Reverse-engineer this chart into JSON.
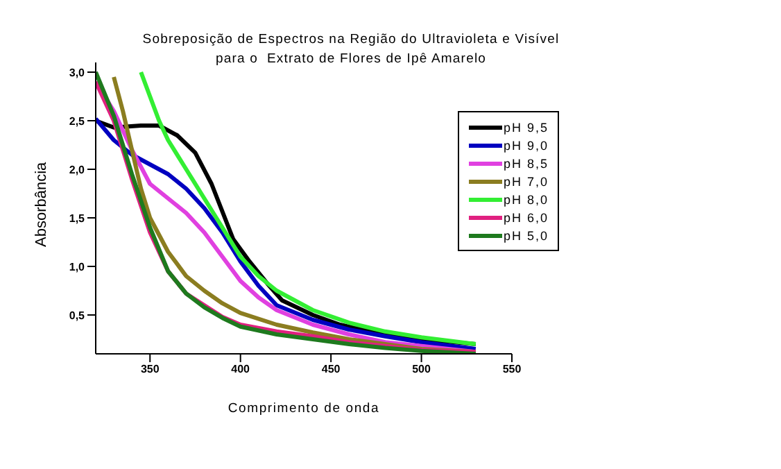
{
  "chart_data": {
    "type": "line",
    "title": "Sobreposição de Espectros na Região do Ultravioleta e Visível\npara o  Extrato de Flores de Ipê Amarelo",
    "xlabel": "Comprimento de onda",
    "ylabel": "Absorbância",
    "xlim": [
      320,
      550
    ],
    "xticks": [
      350,
      400,
      450,
      500,
      550
    ],
    "ylim": [
      0.1,
      3.1
    ],
    "yticks": [
      {
        "value": 0.5,
        "label": "0,5"
      },
      {
        "value": 1,
        "label": "1,0"
      },
      {
        "value": 1.5,
        "label": "1,5"
      },
      {
        "value": 2,
        "label": "2,0"
      },
      {
        "value": 2.5,
        "label": "2,5"
      },
      {
        "value": 3,
        "label": "3,0"
      }
    ],
    "legend": "top right",
    "grid": false,
    "marker": "none",
    "line_style": "solid",
    "series": [
      {
        "name": "pH 9,5",
        "color": "#000000",
        "x": [
          320,
          330,
          345,
          355,
          365,
          375,
          384,
          396,
          405,
          415,
          423,
          440,
          455,
          475,
          500,
          530
        ],
        "values": [
          2.5,
          2.43,
          2.45,
          2.45,
          2.35,
          2.17,
          1.85,
          1.28,
          1.05,
          0.82,
          0.65,
          0.5,
          0.4,
          0.32,
          0.25,
          0.2
        ]
      },
      {
        "name": "pH 9,0",
        "color": "#0000c0",
        "x": [
          320,
          330,
          340,
          350,
          360,
          370,
          380,
          390,
          400,
          410,
          420,
          440,
          460,
          480,
          500,
          530
        ],
        "values": [
          2.52,
          2.3,
          2.15,
          2.05,
          1.95,
          1.8,
          1.6,
          1.35,
          1.05,
          0.8,
          0.6,
          0.45,
          0.35,
          0.28,
          0.22,
          0.15
        ]
      },
      {
        "name": "pH 8,5",
        "color": "#e040e0",
        "x": [
          320,
          330,
          340,
          350,
          360,
          370,
          380,
          390,
          400,
          410,
          420,
          440,
          460,
          480,
          500,
          530
        ],
        "values": [
          2.9,
          2.6,
          2.2,
          1.85,
          1.7,
          1.55,
          1.35,
          1.1,
          0.85,
          0.68,
          0.55,
          0.4,
          0.3,
          0.22,
          0.18,
          0.12
        ]
      },
      {
        "name": "pH 7,0",
        "color": "#8b7d20",
        "x": [
          330,
          335,
          340,
          345,
          350,
          360,
          370,
          380,
          390,
          400,
          420,
          440,
          460,
          480,
          500,
          530
        ],
        "values": [
          2.95,
          2.6,
          2.2,
          1.8,
          1.5,
          1.15,
          0.9,
          0.75,
          0.62,
          0.52,
          0.4,
          0.32,
          0.25,
          0.2,
          0.15,
          0.12
        ]
      },
      {
        "name": "pH 8,0",
        "color": "#33ee33",
        "x": [
          345,
          350,
          355,
          360,
          370,
          380,
          390,
          400,
          410,
          420,
          440,
          460,
          480,
          500,
          530
        ],
        "values": [
          3.0,
          2.75,
          2.5,
          2.3,
          2.0,
          1.7,
          1.4,
          1.1,
          0.9,
          0.75,
          0.55,
          0.42,
          0.33,
          0.27,
          0.2
        ]
      },
      {
        "name": "pH 6,0",
        "color": "#e02080",
        "x": [
          320,
          330,
          340,
          350,
          360,
          370,
          380,
          390,
          400,
          420,
          440,
          460,
          480,
          500,
          530
        ],
        "values": [
          2.9,
          2.5,
          1.9,
          1.35,
          0.95,
          0.72,
          0.6,
          0.48,
          0.4,
          0.33,
          0.28,
          0.22,
          0.18,
          0.14,
          0.12
        ]
      },
      {
        "name": "pH 5,0",
        "color": "#1e7a1e",
        "x": [
          320,
          330,
          340,
          350,
          360,
          370,
          380,
          390,
          400,
          420,
          440,
          460,
          480,
          500,
          530
        ],
        "values": [
          3.0,
          2.55,
          1.95,
          1.4,
          0.95,
          0.72,
          0.58,
          0.47,
          0.38,
          0.3,
          0.25,
          0.2,
          0.16,
          0.13,
          0.1
        ]
      }
    ]
  }
}
